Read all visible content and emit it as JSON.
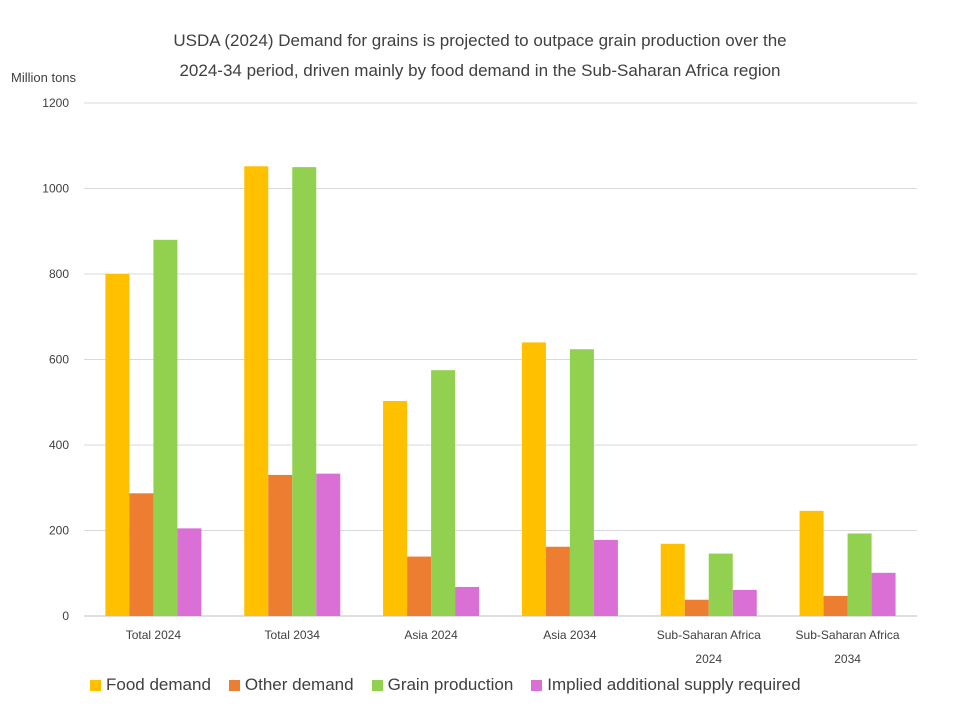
{
  "chart_data": {
    "type": "bar",
    "title_lines": [
      "USDA (2024) Demand for grains is projected to outpace grain production over the",
      "2024-34 period, driven mainly by food demand in the Sub-Saharan Africa region"
    ],
    "ylabel": "Million tons",
    "ylim": [
      0,
      1200
    ],
    "yticks": [
      "0",
      "200",
      "400",
      "600",
      "800",
      "1000",
      "1200"
    ],
    "ytick_values": [
      0,
      200,
      400,
      600,
      800,
      1000,
      1200
    ],
    "grid": true,
    "categories": [
      [
        "Total 2024"
      ],
      [
        "Total 2034"
      ],
      [
        "Asia 2024"
      ],
      [
        "Asia 2034"
      ],
      [
        "Sub-Saharan Africa",
        "2024"
      ],
      [
        "Sub-Saharan Africa",
        "2034"
      ]
    ],
    "series": [
      {
        "name": "Food demand",
        "color": "#FFC000",
        "values": [
          800,
          1052,
          503,
          640,
          169,
          246
        ]
      },
      {
        "name": "Other demand",
        "color": "#ED7D31",
        "values": [
          287,
          330,
          139,
          162,
          38,
          47
        ]
      },
      {
        "name": "Grain production",
        "color": "#92D050",
        "values": [
          880,
          1050,
          575,
          624,
          146,
          193
        ]
      },
      {
        "name": "Implied additional supply required",
        "color": "#DA70D6",
        "values": [
          205,
          333,
          68,
          178,
          61,
          101
        ]
      }
    ],
    "legend_position": "bottom"
  }
}
